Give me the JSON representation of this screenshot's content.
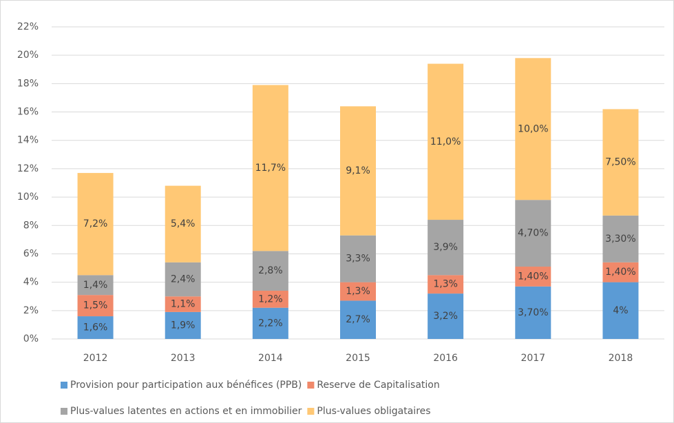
{
  "chart_data": {
    "type": "stacked_bar",
    "categories": [
      "2012",
      "2013",
      "2014",
      "2015",
      "2016",
      "2017",
      "2018"
    ],
    "series": [
      {
        "name": "Provision pour participation aux bénéfices (PPB)",
        "color": "#5b9bd5",
        "values": [
          1.6,
          1.9,
          2.2,
          2.7,
          3.2,
          3.7,
          4
        ],
        "value_labels": [
          "1,6%",
          "1,9%",
          "2,2%",
          "2,7%",
          "3,2%",
          "3,70%",
          "4%"
        ]
      },
      {
        "name": "Reserve de Capitalisation",
        "color": "#f0896a",
        "values": [
          1.5,
          1.1,
          1.2,
          1.3,
          1.3,
          1.4,
          1.4
        ],
        "value_labels": [
          "1,5%",
          "1,1%",
          "1,2%",
          "1,3%",
          "1,3%",
          "1,40%",
          "1,40%"
        ]
      },
      {
        "name": "Plus-values latentes en actions et en immobilier",
        "color": "#a5a5a5",
        "values": [
          1.4,
          2.4,
          2.8,
          3.3,
          3.9,
          4.7,
          3.3
        ],
        "value_labels": [
          "1,4%",
          "2,4%",
          "2,8%",
          "3,3%",
          "3,9%",
          "4,70%",
          "3,30%"
        ]
      },
      {
        "name": "Plus-values obligataires",
        "color": "#ffc875",
        "values": [
          7.2,
          5.4,
          11.7,
          9.1,
          11.0,
          10.0,
          7.5
        ],
        "value_labels": [
          "7,2%",
          "5,4%",
          "11,7%",
          "9,1%",
          "11,0%",
          "10,0%",
          "7,50%"
        ]
      }
    ],
    "ylim": [
      0,
      22
    ],
    "yticks": [
      {
        "value": 0,
        "label": "0%"
      },
      {
        "value": 2,
        "label": "2%"
      },
      {
        "value": 4,
        "label": "4%"
      },
      {
        "value": 6,
        "label": "6%"
      },
      {
        "value": 8,
        "label": "8%"
      },
      {
        "value": 10,
        "label": "10%"
      },
      {
        "value": 12,
        "label": "12%"
      },
      {
        "value": 14,
        "label": "14%"
      },
      {
        "value": 16,
        "label": "16%"
      },
      {
        "value": 18,
        "label": "18%"
      },
      {
        "value": 20,
        "label": "20%"
      },
      {
        "value": 22,
        "label": "22%"
      }
    ],
    "grid": true,
    "legend": "bottom"
  }
}
